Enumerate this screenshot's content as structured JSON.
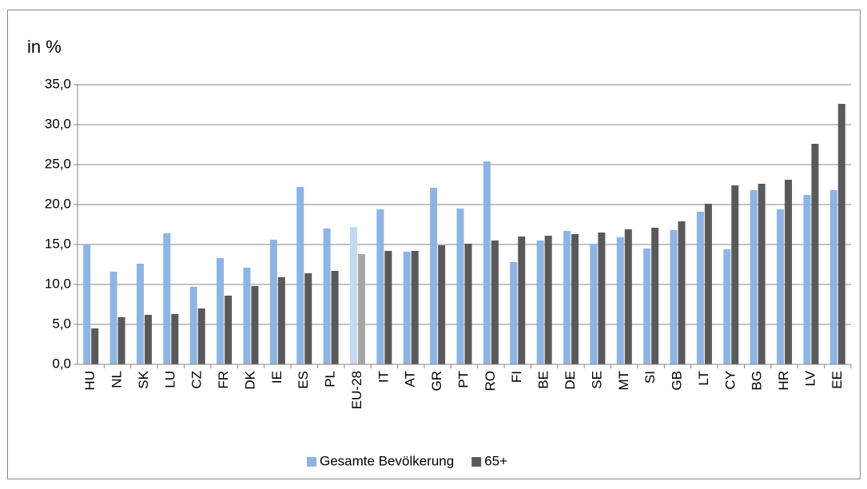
{
  "chart_data": {
    "type": "bar",
    "y_label": "in %",
    "categories": [
      "HU",
      "NL",
      "SK",
      "LU",
      "CZ",
      "FR",
      "DK",
      "IE",
      "ES",
      "PL",
      "EU-28",
      "IT",
      "AT",
      "GR",
      "PT",
      "RO",
      "FI",
      "BE",
      "DE",
      "SE",
      "MT",
      "SI",
      "GB",
      "LT",
      "CY",
      "BG",
      "HR",
      "LV",
      "EE"
    ],
    "highlight_category": "EU-28",
    "series": [
      {
        "name": "Gesamte Bevölkerung",
        "color": "#8eb4e3",
        "highlight_color": "#c6d9f1",
        "values": [
          15.0,
          11.6,
          12.6,
          16.4,
          9.7,
          13.3,
          12.1,
          15.6,
          22.2,
          17.0,
          17.2,
          19.4,
          14.1,
          22.1,
          19.5,
          25.4,
          12.8,
          15.5,
          16.7,
          15.1,
          15.9,
          14.5,
          16.8,
          19.1,
          14.4,
          21.8,
          19.4,
          21.2,
          21.8
        ]
      },
      {
        "name": "65+",
        "color": "#595959",
        "highlight_color": "#a6a6a6",
        "values": [
          4.5,
          5.9,
          6.2,
          6.3,
          7.0,
          8.6,
          9.8,
          10.9,
          11.4,
          11.7,
          13.8,
          14.2,
          14.2,
          14.9,
          15.1,
          15.5,
          16.0,
          16.1,
          16.3,
          16.5,
          16.9,
          17.1,
          17.9,
          20.1,
          22.4,
          22.6,
          23.1,
          27.6,
          32.6
        ]
      }
    ],
    "ylim": [
      0,
      35
    ],
    "yticks": [
      {
        "value": 0,
        "label": "0,0"
      },
      {
        "value": 5,
        "label": "5,0"
      },
      {
        "value": 10,
        "label": "10,0"
      },
      {
        "value": 15,
        "label": "15,0"
      },
      {
        "value": 20,
        "label": "20,0"
      },
      {
        "value": 25,
        "label": "25,0"
      },
      {
        "value": 30,
        "label": "30,0"
      },
      {
        "value": 35,
        "label": "35,0"
      }
    ],
    "grid": true,
    "legend": "bottom"
  }
}
